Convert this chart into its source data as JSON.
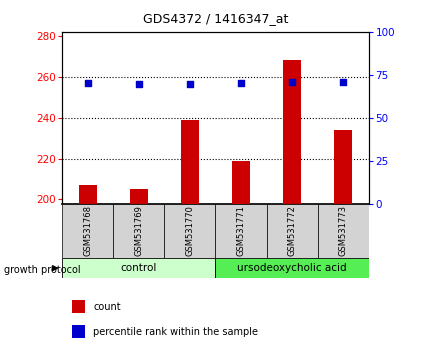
{
  "title": "GDS4372 / 1416347_at",
  "samples": [
    "GSM531768",
    "GSM531769",
    "GSM531770",
    "GSM531771",
    "GSM531772",
    "GSM531773"
  ],
  "counts": [
    207,
    205,
    239,
    219,
    268,
    234
  ],
  "percentile_ranks": [
    70.5,
    69.5,
    69.5,
    70,
    71,
    70.8
  ],
  "ylim_left": [
    198,
    282
  ],
  "ylim_right": [
    0,
    100
  ],
  "yticks_left": [
    200,
    220,
    240,
    260,
    280
  ],
  "yticks_right": [
    0,
    25,
    50,
    75,
    100
  ],
  "bar_color": "#cc0000",
  "dot_color": "#0000cc",
  "bar_width": 0.35,
  "title_fontsize": 9,
  "tick_fontsize": 7.5,
  "label_fontsize": 7,
  "sample_fontsize": 6,
  "group_fontsize": 7.5,
  "legend_fontsize": 7,
  "control_color_light": "#ccffcc",
  "control_color_border": "#aaddaa",
  "udca_color_light": "#55ee55",
  "udca_color_border": "#33bb33",
  "xlabel_group": "growth protocol",
  "legend_count": "count",
  "legend_pct": "percentile rank within the sample",
  "grid_yticks": [
    220,
    240,
    260
  ]
}
